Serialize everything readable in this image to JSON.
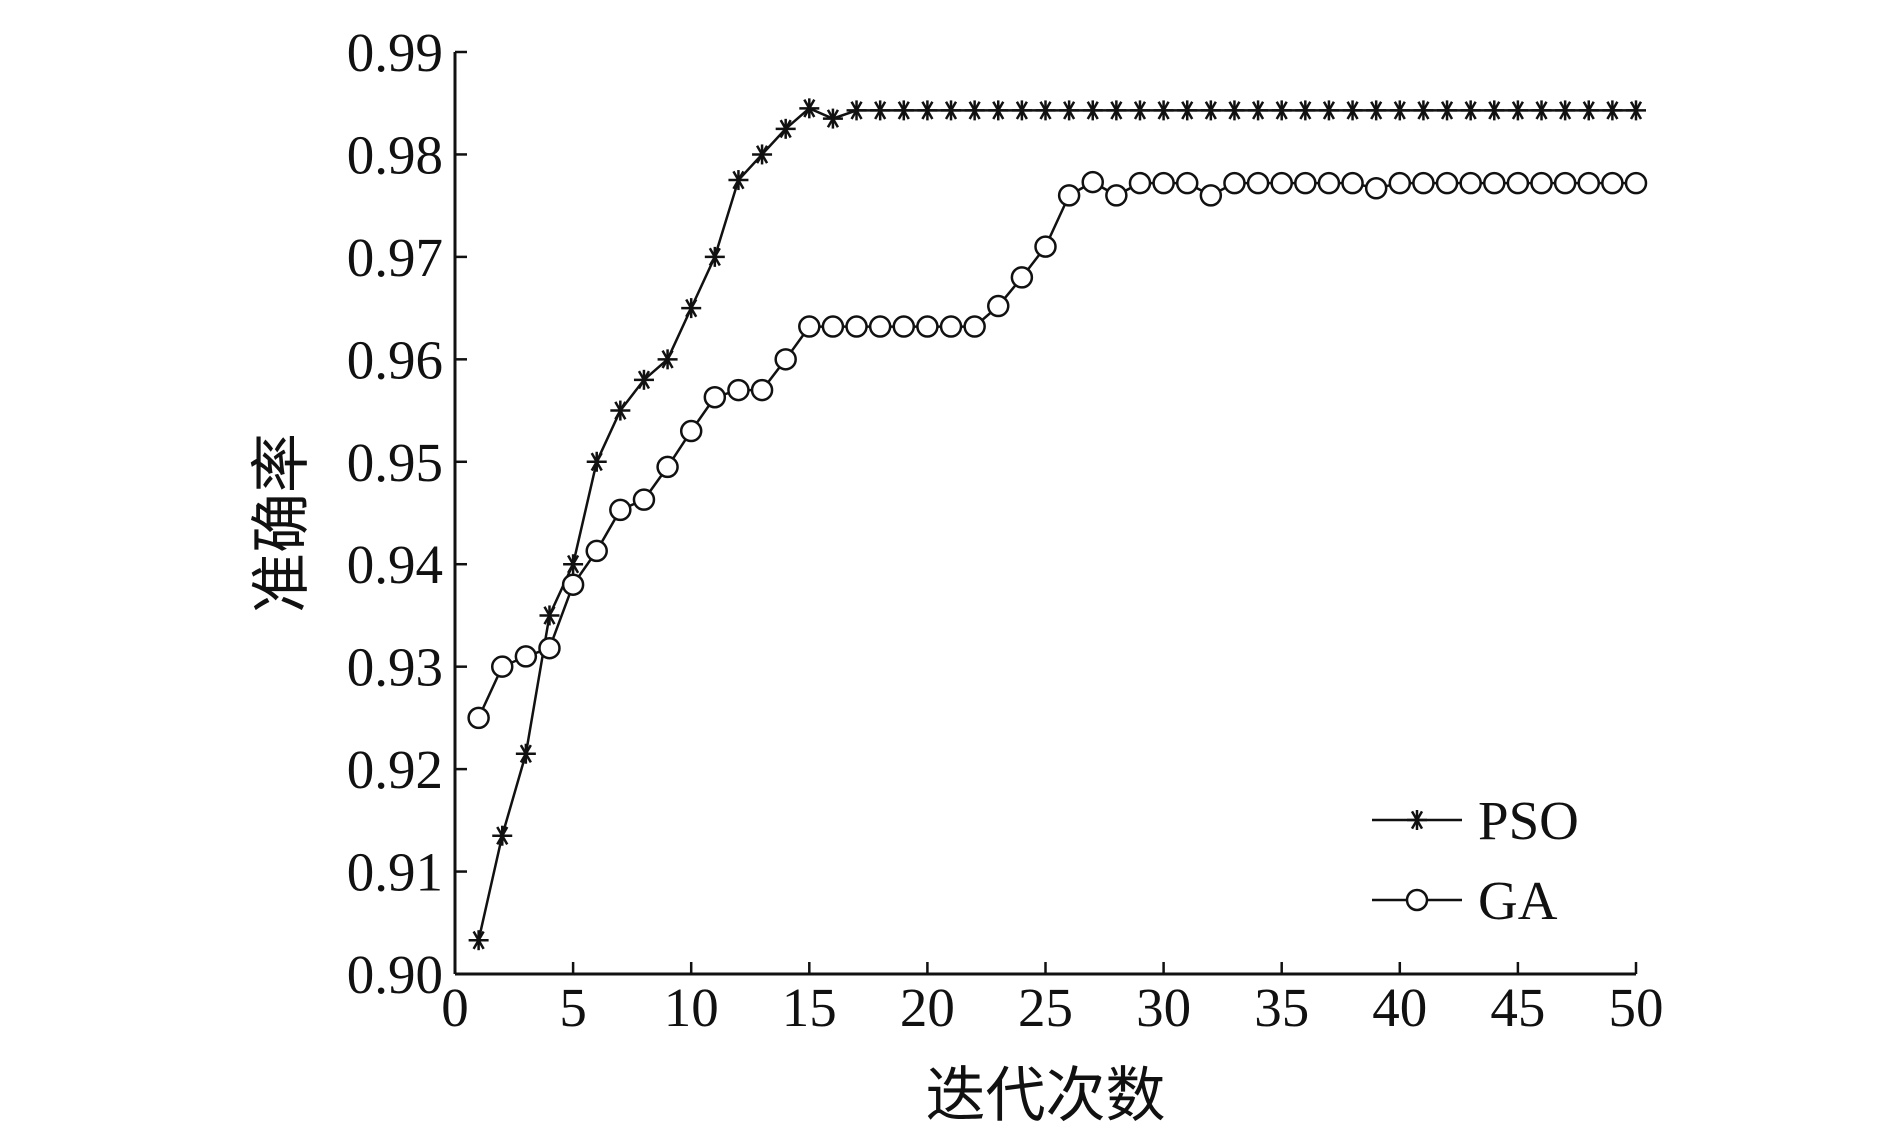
{
  "chart_data": {
    "type": "line",
    "title": "",
    "xlabel": "迭代次数",
    "ylabel": "准确率",
    "xlim": [
      0,
      50
    ],
    "ylim": [
      0.9,
      0.99
    ],
    "xticks": [
      0,
      5,
      10,
      15,
      20,
      25,
      30,
      35,
      40,
      45,
      50
    ],
    "xtick_labels": [
      "0",
      "5",
      "10",
      "15",
      "20",
      "25",
      "30",
      "35",
      "40",
      "45",
      "50"
    ],
    "yticks": [
      0.9,
      0.91,
      0.92,
      0.93,
      0.94,
      0.95,
      0.96,
      0.97,
      0.98,
      0.99
    ],
    "ytick_labels": [
      "0.90",
      "0.91",
      "0.92",
      "0.93",
      "0.94",
      "0.95",
      "0.96",
      "0.97",
      "0.98",
      "0.99"
    ],
    "grid": false,
    "legend_position": "bottom-right",
    "x": [
      1,
      2,
      3,
      4,
      5,
      6,
      7,
      8,
      9,
      10,
      11,
      12,
      13,
      14,
      15,
      16,
      17,
      18,
      19,
      20,
      21,
      22,
      23,
      24,
      25,
      26,
      27,
      28,
      29,
      30,
      31,
      32,
      33,
      34,
      35,
      36,
      37,
      38,
      39,
      40,
      41,
      42,
      43,
      44,
      45,
      46,
      47,
      48,
      49,
      50
    ],
    "series": [
      {
        "name": "PSO",
        "marker": "asterisk",
        "color": "#111111",
        "values": [
          0.9033,
          0.9135,
          0.9215,
          0.935,
          0.94,
          0.95,
          0.955,
          0.958,
          0.96,
          0.965,
          0.97,
          0.9775,
          0.98,
          0.9825,
          0.9845,
          0.9835,
          0.9843,
          0.9843,
          0.9843,
          0.9843,
          0.9843,
          0.9843,
          0.9843,
          0.9843,
          0.9843,
          0.9843,
          0.9843,
          0.9843,
          0.9843,
          0.9843,
          0.9843,
          0.9843,
          0.9843,
          0.9843,
          0.9843,
          0.9843,
          0.9843,
          0.9843,
          0.9843,
          0.9843,
          0.9843,
          0.9843,
          0.9843,
          0.9843,
          0.9843,
          0.9843,
          0.9843,
          0.9843,
          0.9843,
          0.9843
        ]
      },
      {
        "name": "GA",
        "marker": "circle",
        "color": "#111111",
        "values": [
          0.925,
          0.93,
          0.931,
          0.9318,
          0.938,
          0.9413,
          0.9453,
          0.9463,
          0.9495,
          0.953,
          0.9563,
          0.957,
          0.957,
          0.96,
          0.9632,
          0.9632,
          0.9632,
          0.9632,
          0.9632,
          0.9632,
          0.9632,
          0.9632,
          0.9652,
          0.968,
          0.971,
          0.976,
          0.9773,
          0.976,
          0.9772,
          0.9772,
          0.9772,
          0.976,
          0.9772,
          0.9772,
          0.9772,
          0.9772,
          0.9772,
          0.9772,
          0.9767,
          0.9772,
          0.9772,
          0.9772,
          0.9772,
          0.9772,
          0.9772,
          0.9772,
          0.9772,
          0.9772,
          0.9772,
          0.9772
        ]
      }
    ]
  }
}
